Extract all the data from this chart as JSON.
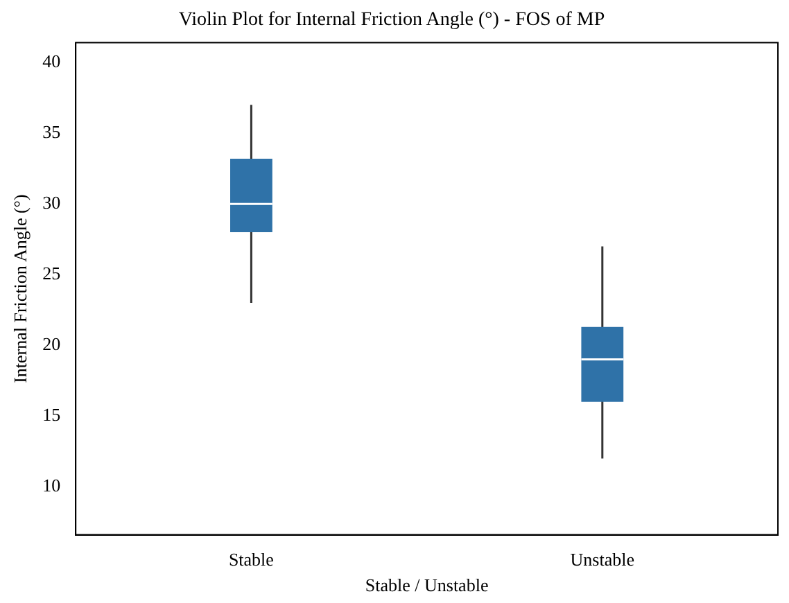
{
  "chart_data": {
    "type": "box",
    "title": "Violin Plot for Internal Friction Angle (°) - FOS of MP",
    "xlabel": "Stable / Unstable",
    "ylabel": "Internal Friction Angle (°)",
    "categories": [
      "Stable",
      "Unstable"
    ],
    "boxes": [
      {
        "low": 23,
        "q1": 28,
        "median": 30,
        "q3": 33.2,
        "high": 37
      },
      {
        "low": 12,
        "q1": 16,
        "median": 19,
        "q3": 21.3,
        "high": 27
      }
    ],
    "color": "#2f72a8",
    "ylim": [
      6.6,
      41.4
    ],
    "yticks": [
      10,
      15,
      20,
      25,
      30,
      35,
      40
    ],
    "grid": false,
    "legend": false
  }
}
